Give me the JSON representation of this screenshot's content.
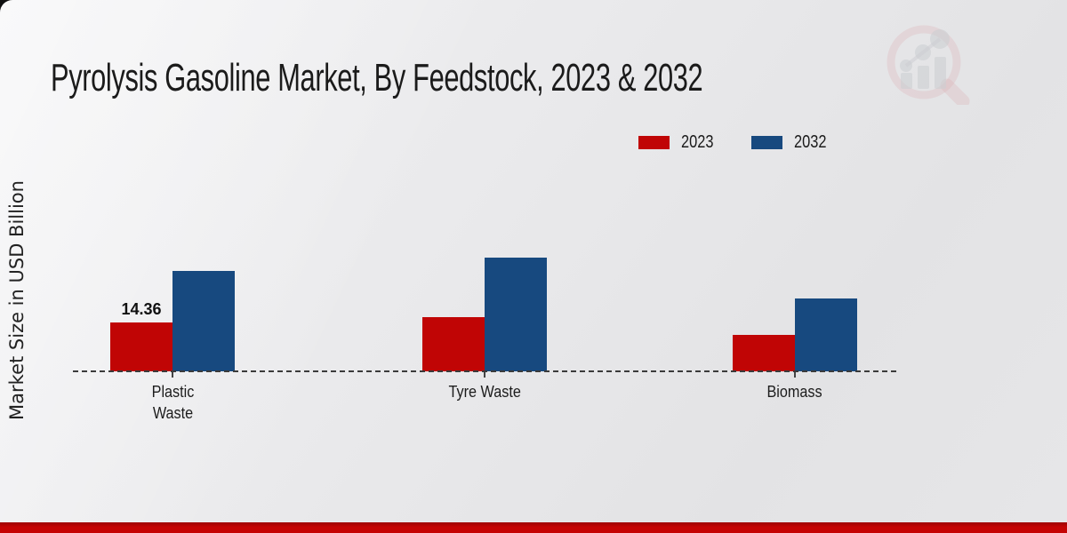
{
  "page": {
    "title": "Pyrolysis Gasoline Market, By Feedstock, 2023 & 2032",
    "ylabel": "Market Size in USD Billion"
  },
  "colors": {
    "series_2023": "#c00505",
    "series_2032": "#17497f",
    "footer_strip": "#c50404",
    "baseline": "#3b3b3b"
  },
  "chart_data": {
    "type": "bar",
    "title": "Pyrolysis Gasoline Market, By Feedstock, 2023 & 2032",
    "xlabel": "",
    "ylabel": "Market Size in USD Billion",
    "categories": [
      "Plastic Waste",
      "Tyre Waste",
      "Biomass"
    ],
    "series": [
      {
        "name": "2023",
        "color": "#c00505",
        "values": [
          14.36,
          15.9,
          10.7
        ]
      },
      {
        "name": "2032",
        "color": "#17497f",
        "values": [
          29.5,
          33.4,
          21.4
        ]
      }
    ],
    "annotations": [
      {
        "series": "2023",
        "category_index": 0,
        "text": "14.36"
      }
    ],
    "ylim": [
      0,
      65
    ],
    "grid": false,
    "legend_position": "top-right",
    "axis_style": "dashed-baseline-only"
  }
}
